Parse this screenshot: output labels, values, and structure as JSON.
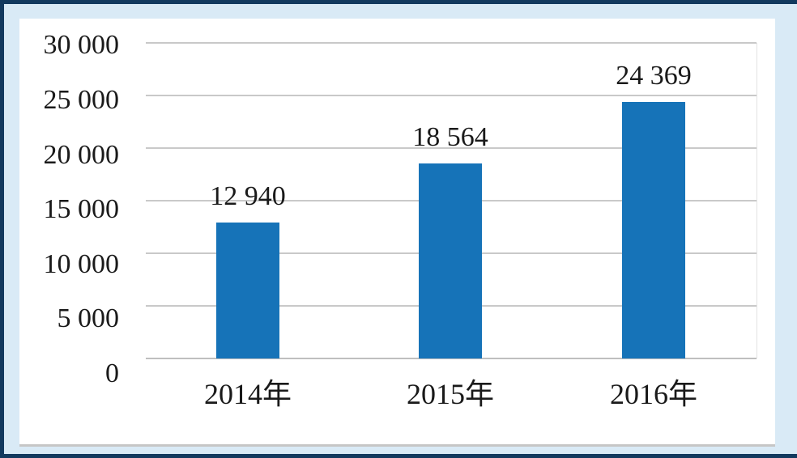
{
  "chart_data": {
    "type": "bar",
    "title": "",
    "xlabel": "",
    "ylabel": "",
    "categories": [
      "2014年",
      "2015年",
      "2016年"
    ],
    "values": [
      12940,
      18564,
      24369
    ],
    "value_labels": [
      "12 940",
      "18 564",
      "24 369"
    ],
    "series": [
      {
        "name": "",
        "values": [
          12940,
          18564,
          24369
        ]
      }
    ],
    "y_ticks": [
      {
        "value": 30000,
        "label": "30 000"
      },
      {
        "value": 25000,
        "label": "25 000"
      },
      {
        "value": 20000,
        "label": "20 000"
      },
      {
        "value": 15000,
        "label": "15 000"
      },
      {
        "value": 10000,
        "label": "10 000"
      },
      {
        "value": 5000,
        "label": "5 000"
      },
      {
        "value": 0,
        "label": "0"
      }
    ],
    "ylim": [
      0,
      30000
    ],
    "y_step": 5000,
    "grid": true,
    "legend": "none",
    "colors": {
      "bar": "#1673B8",
      "frame_border": "#12395E",
      "page_background": "#D9EAF6",
      "plot_background": "#FFFFFF",
      "gridline": "#C9C9C9",
      "baseline": "#BFBFBF",
      "text": "#1A1A1A"
    }
  }
}
